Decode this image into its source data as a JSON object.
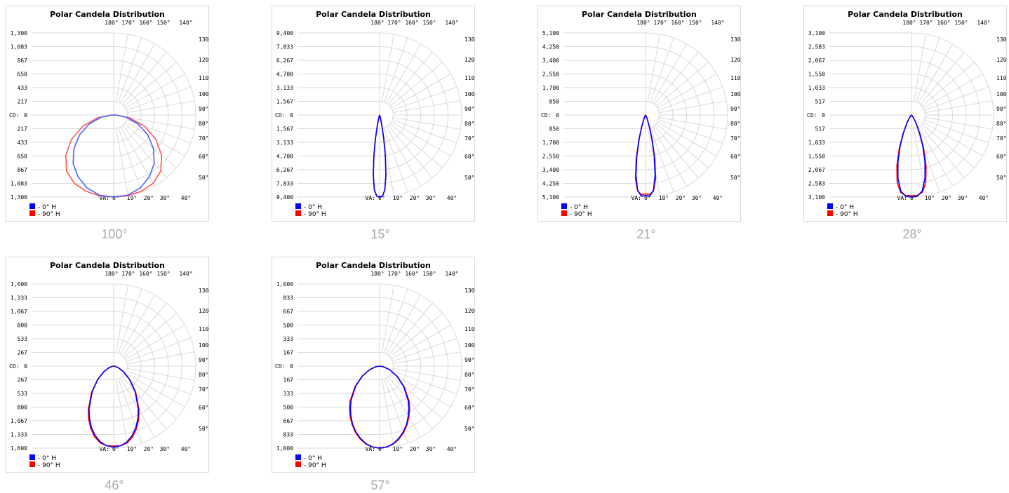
{
  "page": {
    "background": "#ffffff"
  },
  "legend": {
    "series0": "- 0° H",
    "series1": "- 90° H"
  },
  "colors": {
    "series0": "#0000ff",
    "series1": "#ff0000",
    "grid": "#d9d9d9",
    "frame": "#d7d7d7",
    "text": "#000000",
    "beam_label": "#a9a9a9"
  },
  "charts": [
    {
      "beam_label": "100°"
    },
    {
      "beam_label": "15°"
    },
    {
      "beam_label": "21°"
    },
    {
      "beam_label": "28°"
    },
    {
      "beam_label": "46°"
    },
    {
      "beam_label": "57°"
    }
  ],
  "chart_data": [
    {
      "type": "polar",
      "title": "Polar Candela Distribution",
      "ylabel": "CD:",
      "va_label": "VA:",
      "cd_ticks": [
        "1,300",
        "1,083",
        "867",
        "650",
        "433",
        "217",
        "0",
        "217",
        "433",
        "650",
        "867",
        "1,083",
        "1,300"
      ],
      "max_cd": 1300,
      "top_angle_labels": [
        "180°",
        "170°",
        "160°",
        "150°",
        "140°"
      ],
      "right_angle_labels": [
        "130°",
        "120°",
        "110°",
        "100°",
        "90°",
        "80°",
        "70°",
        "60°",
        "50°"
      ],
      "bottom_angle_labels": [
        "0°",
        "10°",
        "20°",
        "30°",
        "40°"
      ],
      "series": [
        {
          "name": "0° H",
          "color": "#4a64ff",
          "points": [
            [
              0,
              1300
            ],
            [
              10,
              1290
            ],
            [
              20,
              1230
            ],
            [
              30,
              1130
            ],
            [
              40,
              1000
            ],
            [
              50,
              820
            ],
            [
              60,
              620
            ],
            [
              70,
              410
            ],
            [
              80,
              200
            ],
            [
              88,
              40
            ],
            [
              90,
              0
            ]
          ]
        },
        {
          "name": "90° H",
          "color": "#ff5555",
          "points": [
            [
              0,
              1300
            ],
            [
              10,
              1300
            ],
            [
              20,
              1285
            ],
            [
              30,
              1250
            ],
            [
              40,
              1160
            ],
            [
              50,
              990
            ],
            [
              60,
              770
            ],
            [
              70,
              520
            ],
            [
              80,
              260
            ],
            [
              88,
              50
            ],
            [
              90,
              0
            ]
          ]
        }
      ]
    },
    {
      "type": "polar",
      "title": "Polar Candela Distribution",
      "ylabel": "CD:",
      "va_label": "VA:",
      "cd_ticks": [
        "9,400",
        "7,833",
        "6,267",
        "4,700",
        "3,133",
        "1,567",
        "0",
        "1,567",
        "3,133",
        "4,700",
        "6,267",
        "7,833",
        "9,400"
      ],
      "max_cd": 9400,
      "top_angle_labels": [
        "180°",
        "170°",
        "160°",
        "150°",
        "140°"
      ],
      "right_angle_labels": [
        "130°",
        "120°",
        "110°",
        "100°",
        "90°",
        "80°",
        "70°",
        "60°",
        "50°"
      ],
      "bottom_angle_labels": [
        "0°",
        "10°",
        "20°",
        "30°",
        "40°"
      ],
      "series": [
        {
          "name": "0° H",
          "color": "#0000ff",
          "points": [
            [
              0,
              9400
            ],
            [
              2,
              9300
            ],
            [
              4,
              8600
            ],
            [
              6,
              6900
            ],
            [
              8,
              4700
            ],
            [
              10,
              2700
            ],
            [
              12,
              1300
            ],
            [
              14,
              600
            ],
            [
              16,
              200
            ],
            [
              20,
              50
            ],
            [
              30,
              0
            ]
          ]
        },
        {
          "name": "90° H",
          "color": "#ff0000",
          "points": [
            [
              0,
              9400
            ],
            [
              2,
              9300
            ],
            [
              4,
              8600
            ],
            [
              6,
              6900
            ],
            [
              8,
              4700
            ],
            [
              10,
              2700
            ],
            [
              12,
              1300
            ],
            [
              14,
              600
            ],
            [
              16,
              200
            ],
            [
              20,
              50
            ],
            [
              30,
              0
            ]
          ]
        }
      ]
    },
    {
      "type": "polar",
      "title": "Polar Candela Distribution",
      "ylabel": "CD:",
      "va_label": "VA:",
      "cd_ticks": [
        "5,100",
        "4,250",
        "3,400",
        "2,550",
        "1,700",
        "850",
        "0",
        "850",
        "1,700",
        "2,550",
        "3,400",
        "4,250",
        "5,100"
      ],
      "max_cd": 5100,
      "top_angle_labels": [
        "180°",
        "170°",
        "160°",
        "150°",
        "140°"
      ],
      "right_angle_labels": [
        "130°",
        "120°",
        "110°",
        "100°",
        "90°",
        "80°",
        "70°",
        "60°",
        "50°"
      ],
      "bottom_angle_labels": [
        "0°",
        "10°",
        "20°",
        "30°",
        "40°"
      ],
      "series": [
        {
          "name": "0° H",
          "color": "#0000ff",
          "points": [
            [
              0,
              5000
            ],
            [
              3,
              5050
            ],
            [
              6,
              4700
            ],
            [
              9,
              3800
            ],
            [
              12,
              2600
            ],
            [
              15,
              1500
            ],
            [
              18,
              750
            ],
            [
              22,
              300
            ],
            [
              26,
              100
            ],
            [
              32,
              20
            ],
            [
              40,
              0
            ]
          ]
        },
        {
          "name": "90° H",
          "color": "#ff0000",
          "points": [
            [
              0,
              4900
            ],
            [
              3,
              4950
            ],
            [
              6,
              4750
            ],
            [
              9,
              4000
            ],
            [
              12,
              2800
            ],
            [
              15,
              1600
            ],
            [
              18,
              800
            ],
            [
              22,
              320
            ],
            [
              26,
              110
            ],
            [
              32,
              20
            ],
            [
              40,
              0
            ]
          ]
        }
      ]
    },
    {
      "type": "polar",
      "title": "Polar Candela Distribution",
      "ylabel": "CD:",
      "va_label": "VA:",
      "cd_ticks": [
        "3,100",
        "2,583",
        "2,067",
        "1,550",
        "1,033",
        "517",
        "0",
        "517",
        "1,033",
        "1,550",
        "2,067",
        "2,583",
        "3,100"
      ],
      "max_cd": 3100,
      "top_angle_labels": [
        "180°",
        "170°",
        "160°",
        "150°",
        "140°"
      ],
      "right_angle_labels": [
        "130°",
        "120°",
        "110°",
        "100°",
        "90°",
        "80°",
        "70°",
        "60°",
        "50°"
      ],
      "bottom_angle_labels": [
        "0°",
        "10°",
        "20°",
        "30°",
        "40°"
      ],
      "series": [
        {
          "name": "0° H",
          "color": "#0000ff",
          "points": [
            [
              0,
              3100
            ],
            [
              4,
              3080
            ],
            [
              8,
              2900
            ],
            [
              12,
              2450
            ],
            [
              16,
              1850
            ],
            [
              20,
              1250
            ],
            [
              24,
              750
            ],
            [
              30,
              320
            ],
            [
              36,
              120
            ],
            [
              44,
              30
            ],
            [
              55,
              0
            ]
          ]
        },
        {
          "name": "90° H",
          "color": "#ff0000",
          "points": [
            [
              0,
              3050
            ],
            [
              4,
              3050
            ],
            [
              8,
              2950
            ],
            [
              12,
              2600
            ],
            [
              16,
              2000
            ],
            [
              20,
              1350
            ],
            [
              24,
              800
            ],
            [
              30,
              340
            ],
            [
              36,
              130
            ],
            [
              44,
              30
            ],
            [
              55,
              0
            ]
          ]
        }
      ]
    },
    {
      "type": "polar",
      "title": "Polar Candela Distribution",
      "ylabel": "CD:",
      "va_label": "VA:",
      "cd_ticks": [
        "1,600",
        "1,333",
        "1,067",
        "800",
        "533",
        "267",
        "0",
        "267",
        "533",
        "800",
        "1,067",
        "1,333",
        "1,600"
      ],
      "max_cd": 1600,
      "top_angle_labels": [
        "180°",
        "170°",
        "160°",
        "150°",
        "140°"
      ],
      "right_angle_labels": [
        "130°",
        "120°",
        "110°",
        "100°",
        "90°",
        "80°",
        "70°",
        "60°",
        "50°"
      ],
      "bottom_angle_labels": [
        "0°",
        "10°",
        "20°",
        "30°",
        "40°"
      ],
      "series": [
        {
          "name": "0° H",
          "color": "#0000ff",
          "points": [
            [
              0,
              1580
            ],
            [
              5,
              1560
            ],
            [
              10,
              1500
            ],
            [
              15,
              1400
            ],
            [
              20,
              1270
            ],
            [
              25,
              1120
            ],
            [
              30,
              960
            ],
            [
              40,
              650
            ],
            [
              50,
              400
            ],
            [
              60,
              220
            ],
            [
              70,
              100
            ],
            [
              80,
              30
            ],
            [
              90,
              0
            ]
          ]
        },
        {
          "name": "90° H",
          "color": "#ff0000",
          "points": [
            [
              0,
              1560
            ],
            [
              5,
              1560
            ],
            [
              10,
              1520
            ],
            [
              15,
              1430
            ],
            [
              20,
              1300
            ],
            [
              25,
              1150
            ],
            [
              30,
              990
            ],
            [
              40,
              670
            ],
            [
              50,
              410
            ],
            [
              60,
              225
            ],
            [
              70,
              100
            ],
            [
              80,
              30
            ],
            [
              90,
              0
            ]
          ]
        }
      ]
    },
    {
      "type": "polar",
      "title": "Polar Candela Distribution",
      "ylabel": "CD:",
      "va_label": "VA:",
      "cd_ticks": [
        "1,000",
        "833",
        "667",
        "500",
        "333",
        "167",
        "0",
        "167",
        "333",
        "500",
        "667",
        "833",
        "1,000"
      ],
      "max_cd": 1000,
      "top_angle_labels": [
        "180°",
        "170°",
        "160°",
        "150°",
        "140°"
      ],
      "right_angle_labels": [
        "130°",
        "120°",
        "110°",
        "100°",
        "90°",
        "80°",
        "70°",
        "60°",
        "50°"
      ],
      "bottom_angle_labels": [
        "0°",
        "10°",
        "20°",
        "30°",
        "40°"
      ],
      "series": [
        {
          "name": "0° H",
          "color": "#0000ff",
          "points": [
            [
              0,
              1000
            ],
            [
              5,
              990
            ],
            [
              10,
              960
            ],
            [
              15,
              910
            ],
            [
              20,
              850
            ],
            [
              25,
              780
            ],
            [
              30,
              700
            ],
            [
              35,
              620
            ],
            [
              40,
              540
            ],
            [
              50,
              380
            ],
            [
              60,
              240
            ],
            [
              70,
              130
            ],
            [
              80,
              45
            ],
            [
              90,
              0
            ]
          ]
        },
        {
          "name": "90° H",
          "color": "#ff0000",
          "points": [
            [
              0,
              1000
            ],
            [
              5,
              990
            ],
            [
              10,
              965
            ],
            [
              15,
              920
            ],
            [
              20,
              860
            ],
            [
              25,
              790
            ],
            [
              30,
              715
            ],
            [
              35,
              640
            ],
            [
              40,
              560
            ],
            [
              50,
              390
            ],
            [
              60,
              245
            ],
            [
              70,
              130
            ],
            [
              80,
              45
            ],
            [
              90,
              0
            ]
          ]
        }
      ]
    }
  ]
}
